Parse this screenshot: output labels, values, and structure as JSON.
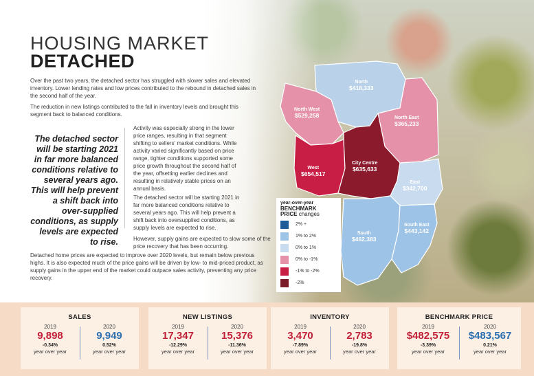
{
  "header": {
    "title_light": "HOUSING MARKET",
    "title_bold": "DETACHED"
  },
  "body": {
    "p1": "Over the past two years, the detached sector has struggled with slower sales and elevated inventory. Lower lending rates and low prices contributed to the rebound in detached sales in the second half of the year.",
    "p2": "The reduction in new listings contributed to the fall in inventory levels and brought this segment back to balanced conditions.",
    "p3": "Activity was especially strong in the lower price ranges, resulting in that segment shifting to sellers' market conditions. While activity varied significantly based on price range, tighter conditions supported some price growth throughout the second half of the year, offsetting earlier declines and resulting in relatively stable prices on an annual basis.",
    "p4": "The detached sector will be starting 2021 in far more balanced conditions relative to several years ago. This will help prevent a shift back into oversupplied conditions, as supply levels are expected to rise.",
    "p5": "However, supply gains are expected to slow some of the price recovery that has been occurring.",
    "p6": "Detached home prices are expected to improve over 2020 levels, but remain below previous highs. It is also expected much of the price gains will be driven by low- to mid-priced product, as supply gains in the upper end of the market could outpace sales activity, preventing any price recovery.",
    "quote": "The detached sector will be starting 2021 in far more balanced conditions relative to several years ago. This will help prevent a shift back into over-supplied conditions, as supply levels are expected to rise."
  },
  "map": {
    "regions": [
      {
        "name": "North",
        "price": "$418,333",
        "color": "#b9d2ea"
      },
      {
        "name": "North West",
        "price": "$529,258",
        "color": "#e491a9"
      },
      {
        "name": "North East",
        "price": "$365,233",
        "color": "#e491a9"
      },
      {
        "name": "West",
        "price": "$654,517",
        "color": "#c81e45"
      },
      {
        "name": "City Centre",
        "price": "$635,633",
        "color": "#8a1a2c"
      },
      {
        "name": "East",
        "price": "$342,700",
        "color": "#c9dcef"
      },
      {
        "name": "South",
        "price": "$462,383",
        "color": "#9dc3e6"
      },
      {
        "name": "South East",
        "price": "$443,142",
        "color": "#9dc3e6"
      }
    ]
  },
  "legend": {
    "title_line1": "year-over-year",
    "title_line2": "BENCHMARK",
    "title_line3": "PRICE",
    "title_line3b": "changes",
    "items": [
      {
        "label": "2% +",
        "color": "#1f5c99"
      },
      {
        "label": "1% to 2%",
        "color": "#9dc3e6"
      },
      {
        "label": "0% to 1%",
        "color": "#c9dcef"
      },
      {
        "label": "0% to -1%",
        "color": "#e491a9"
      },
      {
        "label": "-1% to -2%",
        "color": "#c81e45"
      },
      {
        "label": "-2%",
        "color": "#7a1b2a"
      }
    ]
  },
  "stats": [
    {
      "title": "SALES",
      "y1": "2019",
      "v1": "9,898",
      "c1": "-0.34%",
      "y2": "2020",
      "v2": "9,949",
      "c2": "0.52%",
      "yoy": "year over year"
    },
    {
      "title": "NEW LISTINGS",
      "y1": "2019",
      "v1": "17,347",
      "c1": "-12.29%",
      "y2": "2020",
      "v2": "15,376",
      "c2": "-11.36%",
      "yoy": "year over year"
    },
    {
      "title": "INVENTORY",
      "y1": "2019",
      "v1": "3,470",
      "c1": "-7.89%",
      "y2": "2020",
      "v2": "2,783",
      "c2": "-19.8%",
      "yoy": "year over year"
    },
    {
      "title": "BENCHMARK PRICE",
      "y1": "2019",
      "v1": "$482,575",
      "c1": "-3.39%",
      "y2": "2020",
      "v2": "$483,567",
      "c2": "0.21%",
      "yoy": "year over year"
    }
  ]
}
